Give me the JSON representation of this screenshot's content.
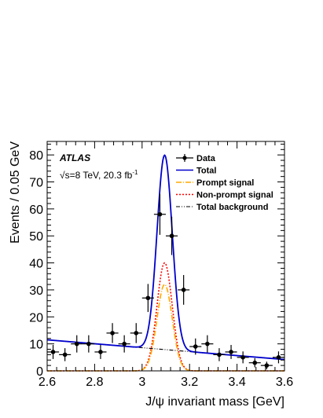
{
  "chart_data": {
    "type": "scatter",
    "title": "",
    "experiment_label": "ATLAS",
    "energy_label": "√s=8 TeV, 20.3 fb",
    "energy_label_sup": "-1",
    "xlabel": "J/ψ invariant mass [GeV]",
    "ylabel": "Events / 0.05 GeV",
    "xlim": [
      2.6,
      3.6
    ],
    "ylim": [
      0,
      85
    ],
    "x_ticks": [
      2.6,
      2.8,
      3.0,
      3.2,
      3.4,
      3.6
    ],
    "x_tick_labels": [
      "2.6",
      "2.8",
      "3",
      "3.2",
      "3.4",
      "3.6"
    ],
    "y_ticks": [
      0,
      10,
      20,
      30,
      40,
      50,
      60,
      70,
      80
    ],
    "y_tick_labels": [
      "0",
      "10",
      "20",
      "30",
      "40",
      "50",
      "60",
      "70",
      "80"
    ],
    "legend_position": "top-right",
    "grid": false,
    "colors": {
      "data": "#000000",
      "total": "#0000cc",
      "prompt": "#ffaa00",
      "nonprompt": "#ff0000",
      "background": "#000000"
    },
    "series": [
      {
        "name": "Data",
        "kind": "points",
        "x": [
          2.625,
          2.675,
          2.725,
          2.775,
          2.825,
          2.875,
          2.925,
          2.975,
          3.025,
          3.075,
          3.125,
          3.175,
          3.225,
          3.275,
          3.325,
          3.375,
          3.425,
          3.475,
          3.525,
          3.575
        ],
        "y": [
          7,
          6,
          10,
          10,
          7,
          14,
          10,
          14,
          27,
          58,
          50,
          30,
          9,
          10,
          6,
          7,
          5,
          3,
          2,
          5
        ],
        "yerr": [
          2.6,
          2.4,
          3.2,
          3.2,
          2.6,
          3.7,
          3.2,
          3.7,
          5.2,
          7.6,
          7.1,
          5.5,
          3.0,
          3.2,
          2.4,
          2.6,
          2.2,
          1.7,
          1.4,
          2.2
        ],
        "xerr": 0.025
      },
      {
        "name": "Total",
        "kind": "line",
        "style": "solid"
      },
      {
        "name": "Prompt signal",
        "kind": "line",
        "style": "dashdot"
      },
      {
        "name": "Non-prompt signal",
        "kind": "line",
        "style": "dotted"
      },
      {
        "name": "Total background",
        "kind": "line",
        "style": "dashdotdot"
      }
    ],
    "fit_model": {
      "background": {
        "y_at_xmin": 11.5,
        "y_at_xmax": 4.2
      },
      "prompt_signal": {
        "mean": 3.095,
        "sigma": 0.032,
        "peak": 32
      },
      "nonprompt_signal": {
        "mean": 3.095,
        "sigma": 0.032,
        "peak": 40
      }
    }
  }
}
